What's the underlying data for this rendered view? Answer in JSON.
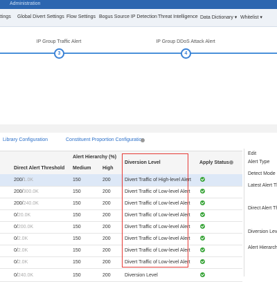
{
  "header": {
    "title": "Administration",
    "nav": [
      "ttings",
      "Global Divert Settings",
      "Flow Settings",
      "Bogus Source IP Detection",
      "Threat Intelligence",
      "Data Dictionary",
      "Whitelist"
    ]
  },
  "steps": [
    {
      "number": "3",
      "label": "IP Group Traffic Alert"
    },
    {
      "number": "4",
      "label": "IP Group DDoS Attack Alert"
    }
  ],
  "links": [
    "Library Configuration",
    "Constituent Proportion Configuration"
  ],
  "table": {
    "group_header": "Alert Hierarchy (%)",
    "columns": [
      "Direct Alert Threshold",
      "Medium",
      "High",
      "Diversion Level",
      "Apply Status"
    ],
    "rows": [
      [
        "200/",
        "1.0K",
        "150",
        "200",
        "Divert Traffic of High-level Alert"
      ],
      [
        "200/",
        "300.0K",
        "150",
        "200",
        "Divert Traffic of Low-level Alert"
      ],
      [
        "200/",
        "240.0K",
        "150",
        "200",
        "Divert Traffic of Low-level Alert"
      ],
      [
        "0/",
        "20.0K",
        "150",
        "200",
        "Divert Traffic of Low-level Alert"
      ],
      [
        "0/",
        "200.0K",
        "150",
        "200",
        "Divert Traffic of Low-level Alert"
      ],
      [
        "0/",
        "2.0K",
        "150",
        "200",
        "Divert Traffic of Low-level Alert"
      ],
      [
        "0/",
        "2.0K",
        "150",
        "200",
        "Divert Traffic of Low-level Alert"
      ],
      [
        "0/",
        "2.0K",
        "150",
        "200",
        "Divert Traffic of Low-level Alert"
      ],
      [
        "0/",
        "240.0K",
        "150",
        "200",
        "Diversion Level"
      ]
    ]
  },
  "edit_panel": {
    "title": "Edit",
    "fields": [
      "Alert Type",
      "Detect Mode",
      "Latest Alert Thre",
      "Direct Alert Thre",
      "Diversion Level",
      "Alert Hierarchy("
    ]
  }
}
